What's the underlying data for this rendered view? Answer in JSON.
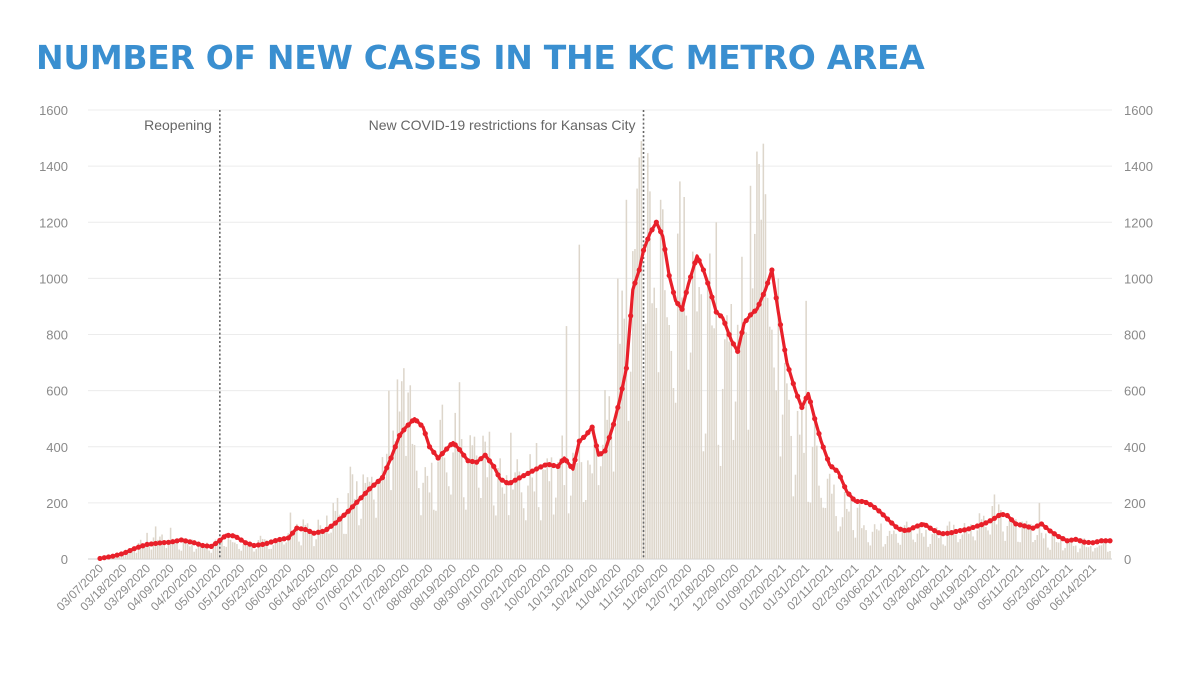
{
  "title": "NUMBER OF NEW CASES IN THE KC METRO AREA",
  "chart_data": {
    "type": "bar",
    "colors": {
      "bars": "#ddd6cb",
      "avg_line": "#e8202a",
      "title": "#3a8fd0"
    },
    "ylim": [
      0,
      1600
    ],
    "yticks": [
      0,
      200,
      400,
      600,
      800,
      1000,
      1200,
      1400,
      1600
    ],
    "secondary_axis": "right (same scale)",
    "x_start": "2020-03-07",
    "x_end": "2021-06-22",
    "xtick_labels": [
      "03/07/2020",
      "03/18/2020",
      "03/29/2020",
      "04/09/2020",
      "04/20/2020",
      "05/01/2020",
      "05/12/2020",
      "05/23/2020",
      "06/03/2020",
      "06/14/2020",
      "06/25/2020",
      "07/06/2020",
      "07/17/2020",
      "07/28/2020",
      "08/08/2020",
      "08/19/2020",
      "08/30/2020",
      "09/10/2020",
      "09/21/2020",
      "10/02/2020",
      "10/13/2020",
      "10/24/2020",
      "11/04/2020",
      "11/15/2020",
      "11/26/2020",
      "12/07/2020",
      "12/18/2020",
      "12/29/2020",
      "01/09/2021",
      "01/20/2021",
      "01/31/2021",
      "02/11/2021",
      "02/23/2021",
      "03/06/2021",
      "03/17/2021",
      "03/28/2021",
      "04/08/2021",
      "04/19/2021",
      "04/30/2021",
      "05/11/2021",
      "05/23/2021",
      "06/03/2021",
      "06/14/2021"
    ],
    "annotations": [
      {
        "date": "2020-05-02",
        "label": "Reopening"
      },
      {
        "date": "2020-11-16",
        "label": "New COVID-19 restrictions for Kansas City"
      }
    ],
    "series": [
      {
        "type": "bar",
        "description": "daily new cases (approximate)",
        "points": [
          [
            "2020-03-07",
            0
          ],
          [
            "2020-03-15",
            10
          ],
          [
            "2020-03-22",
            40
          ],
          [
            "2020-03-29",
            75
          ],
          [
            "2020-04-05",
            85
          ],
          [
            "2020-04-12",
            70
          ],
          [
            "2020-04-20",
            55
          ],
          [
            "2020-04-28",
            50
          ],
          [
            "2020-05-03",
            80
          ],
          [
            "2020-05-10",
            55
          ],
          [
            "2020-05-18",
            55
          ],
          [
            "2020-05-25",
            60
          ],
          [
            "2020-06-01",
            85
          ],
          [
            "2020-06-05",
            125
          ],
          [
            "2020-06-14",
            100
          ],
          [
            "2020-06-20",
            130
          ],
          [
            "2020-06-25",
            175
          ],
          [
            "2020-07-01",
            230
          ],
          [
            "2020-07-06",
            290
          ],
          [
            "2020-07-12",
            330
          ],
          [
            "2020-07-17",
            340
          ],
          [
            "2020-07-22",
            480
          ],
          [
            "2020-07-26",
            560
          ],
          [
            "2020-07-29",
            530
          ],
          [
            "2020-08-03",
            380
          ],
          [
            "2020-08-08",
            320
          ],
          [
            "2020-08-12",
            340
          ],
          [
            "2020-08-16",
            390
          ],
          [
            "2020-08-19",
            380
          ],
          [
            "2020-08-24",
            330
          ],
          [
            "2020-08-30",
            360
          ],
          [
            "2020-09-04",
            380
          ],
          [
            "2020-09-08",
            300
          ],
          [
            "2020-09-12",
            240
          ],
          [
            "2020-09-18",
            280
          ],
          [
            "2020-09-24",
            320
          ],
          [
            "2020-09-30",
            340
          ],
          [
            "2020-10-04",
            320
          ],
          [
            "2020-10-08",
            330
          ],
          [
            "2020-10-12",
            310
          ],
          [
            "2020-10-16",
            420
          ],
          [
            "2020-10-20",
            380
          ],
          [
            "2020-10-24",
            410
          ],
          [
            "2020-10-28",
            520
          ],
          [
            "2020-11-01",
            650
          ],
          [
            "2020-11-05",
            900
          ],
          [
            "2020-11-09",
            1050
          ],
          [
            "2020-11-14",
            1180
          ],
          [
            "2020-11-18",
            1240
          ],
          [
            "2020-11-22",
            1120
          ],
          [
            "2020-11-26",
            950
          ],
          [
            "2020-11-30",
            900
          ],
          [
            "2020-12-03",
            1050
          ],
          [
            "2020-12-07",
            1100
          ],
          [
            "2020-12-10",
            1000
          ],
          [
            "2020-12-14",
            880
          ],
          [
            "2020-12-18",
            820
          ],
          [
            "2020-12-22",
            780
          ],
          [
            "2020-12-26",
            680
          ],
          [
            "2020-12-29",
            850
          ],
          [
            "2021-01-02",
            900
          ],
          [
            "2021-01-06",
            1050
          ],
          [
            "2021-01-09",
            1200
          ],
          [
            "2021-01-13",
            950
          ],
          [
            "2021-01-17",
            700
          ],
          [
            "2021-01-21",
            580
          ],
          [
            "2021-01-25",
            560
          ],
          [
            "2021-01-29",
            520
          ],
          [
            "2021-02-02",
            380
          ],
          [
            "2021-02-06",
            320
          ],
          [
            "2021-02-10",
            240
          ],
          [
            "2021-02-15",
            200
          ],
          [
            "2021-02-20",
            190
          ],
          [
            "2021-02-25",
            160
          ],
          [
            "2021-03-01",
            120
          ],
          [
            "2021-03-06",
            100
          ],
          [
            "2021-03-12",
            110
          ],
          [
            "2021-03-17",
            120
          ],
          [
            "2021-03-23",
            100
          ],
          [
            "2021-03-28",
            90
          ],
          [
            "2021-04-03",
            95
          ],
          [
            "2021-04-08",
            105
          ],
          [
            "2021-04-14",
            115
          ],
          [
            "2021-04-19",
            130
          ],
          [
            "2021-04-24",
            150
          ],
          [
            "2021-04-28",
            170
          ],
          [
            "2021-05-02",
            150
          ],
          [
            "2021-05-07",
            120
          ],
          [
            "2021-05-12",
            115
          ],
          [
            "2021-05-17",
            120
          ],
          [
            "2021-05-23",
            90
          ],
          [
            "2021-05-28",
            70
          ],
          [
            "2021-06-03",
            60
          ],
          [
            "2021-06-09",
            60
          ],
          [
            "2021-06-14",
            55
          ],
          [
            "2021-06-22",
            60
          ]
        ],
        "spikes": [
          [
            "2020-07-20",
            600
          ],
          [
            "2020-07-24",
            640
          ],
          [
            "2020-07-27",
            680
          ],
          [
            "2020-08-14",
            550
          ],
          [
            "2020-08-22",
            630
          ],
          [
            "2020-09-15",
            450
          ],
          [
            "2020-10-09",
            440
          ],
          [
            "2020-10-11",
            830
          ],
          [
            "2020-10-17",
            1120
          ],
          [
            "2020-11-08",
            1280
          ],
          [
            "2020-11-13",
            1320
          ],
          [
            "2020-11-19",
            1310
          ],
          [
            "2020-11-24",
            1280
          ],
          [
            "2020-12-05",
            1290
          ],
          [
            "2020-12-20",
            1200
          ],
          [
            "2021-01-05",
            1330
          ],
          [
            "2021-01-11",
            1480
          ],
          [
            "2021-01-12",
            1300
          ],
          [
            "2021-01-18",
            1000
          ],
          [
            "2021-01-31",
            920
          ],
          [
            "2021-04-29",
            230
          ],
          [
            "2021-05-20",
            200
          ]
        ]
      },
      {
        "type": "line",
        "description": "7-day rolling average (approximate)",
        "points": [
          [
            "2020-03-07",
            2
          ],
          [
            "2020-03-13",
            10
          ],
          [
            "2020-03-18",
            20
          ],
          [
            "2020-03-24",
            40
          ],
          [
            "2020-03-29",
            52
          ],
          [
            "2020-04-05",
            58
          ],
          [
            "2020-04-09",
            60
          ],
          [
            "2020-04-14",
            68
          ],
          [
            "2020-04-20",
            58
          ],
          [
            "2020-04-24",
            48
          ],
          [
            "2020-04-28",
            45
          ],
          [
            "2020-05-01",
            60
          ],
          [
            "2020-05-05",
            85
          ],
          [
            "2020-05-09",
            82
          ],
          [
            "2020-05-14",
            58
          ],
          [
            "2020-05-18",
            48
          ],
          [
            "2020-05-23",
            53
          ],
          [
            "2020-05-29",
            68
          ],
          [
            "2020-06-03",
            75
          ],
          [
            "2020-06-07",
            110
          ],
          [
            "2020-06-11",
            105
          ],
          [
            "2020-06-15",
            92
          ],
          [
            "2020-06-20",
            100
          ],
          [
            "2020-06-25",
            128
          ],
          [
            "2020-07-01",
            170
          ],
          [
            "2020-07-06",
            210
          ],
          [
            "2020-07-11",
            250
          ],
          [
            "2020-07-17",
            290
          ],
          [
            "2020-07-21",
            360
          ],
          [
            "2020-07-25",
            440
          ],
          [
            "2020-07-28",
            470
          ],
          [
            "2020-08-01",
            500
          ],
          [
            "2020-08-05",
            470
          ],
          [
            "2020-08-08",
            400
          ],
          [
            "2020-08-12",
            360
          ],
          [
            "2020-08-17",
            400
          ],
          [
            "2020-08-19",
            415
          ],
          [
            "2020-08-22",
            390
          ],
          [
            "2020-08-26",
            350
          ],
          [
            "2020-08-30",
            345
          ],
          [
            "2020-09-03",
            370
          ],
          [
            "2020-09-07",
            330
          ],
          [
            "2020-09-10",
            285
          ],
          [
            "2020-09-14",
            268
          ],
          [
            "2020-09-18",
            285
          ],
          [
            "2020-09-23",
            305
          ],
          [
            "2020-09-28",
            325
          ],
          [
            "2020-10-02",
            338
          ],
          [
            "2020-10-07",
            330
          ],
          [
            "2020-10-10",
            360
          ],
          [
            "2020-10-14",
            320
          ],
          [
            "2020-10-17",
            420
          ],
          [
            "2020-10-20",
            440
          ],
          [
            "2020-10-23",
            470
          ],
          [
            "2020-10-26",
            370
          ],
          [
            "2020-10-29",
            385
          ],
          [
            "2020-11-02",
            480
          ],
          [
            "2020-11-05",
            570
          ],
          [
            "2020-11-08",
            680
          ],
          [
            "2020-11-11",
            960
          ],
          [
            "2020-11-14",
            1030
          ],
          [
            "2020-11-16",
            1100
          ],
          [
            "2020-11-19",
            1160
          ],
          [
            "2020-11-22",
            1200
          ],
          [
            "2020-11-25",
            1150
          ],
          [
            "2020-11-28",
            1010
          ],
          [
            "2020-12-01",
            920
          ],
          [
            "2020-12-04",
            890
          ],
          [
            "2020-12-07",
            980
          ],
          [
            "2020-12-11",
            1080
          ],
          [
            "2020-12-14",
            1030
          ],
          [
            "2020-12-17",
            960
          ],
          [
            "2020-12-20",
            880
          ],
          [
            "2020-12-23",
            860
          ],
          [
            "2020-12-27",
            780
          ],
          [
            "2020-12-30",
            740
          ],
          [
            "2021-01-02",
            840
          ],
          [
            "2021-01-05",
            870
          ],
          [
            "2021-01-08",
            890
          ],
          [
            "2021-01-12",
            960
          ],
          [
            "2021-01-15",
            1030
          ],
          [
            "2021-01-18",
            880
          ],
          [
            "2021-01-22",
            700
          ],
          [
            "2021-01-26",
            600
          ],
          [
            "2021-01-29",
            540
          ],
          [
            "2021-02-01",
            590
          ],
          [
            "2021-02-04",
            500
          ],
          [
            "2021-02-07",
            420
          ],
          [
            "2021-02-11",
            335
          ],
          [
            "2021-02-15",
            310
          ],
          [
            "2021-02-19",
            240
          ],
          [
            "2021-02-23",
            205
          ],
          [
            "2021-02-27",
            205
          ],
          [
            "2021-03-03",
            190
          ],
          [
            "2021-03-07",
            165
          ],
          [
            "2021-03-11",
            135
          ],
          [
            "2021-03-15",
            108
          ],
          [
            "2021-03-19",
            100
          ],
          [
            "2021-03-23",
            115
          ],
          [
            "2021-03-27",
            125
          ],
          [
            "2021-03-31",
            105
          ],
          [
            "2021-04-04",
            90
          ],
          [
            "2021-04-08",
            92
          ],
          [
            "2021-04-12",
            100
          ],
          [
            "2021-04-16",
            105
          ],
          [
            "2021-04-20",
            115
          ],
          [
            "2021-04-24",
            125
          ],
          [
            "2021-04-28",
            140
          ],
          [
            "2021-05-02",
            160
          ],
          [
            "2021-05-05",
            155
          ],
          [
            "2021-05-09",
            125
          ],
          [
            "2021-05-13",
            118
          ],
          [
            "2021-05-17",
            110
          ],
          [
            "2021-05-21",
            125
          ],
          [
            "2021-05-25",
            100
          ],
          [
            "2021-05-29",
            80
          ],
          [
            "2021-06-02",
            65
          ],
          [
            "2021-06-06",
            70
          ],
          [
            "2021-06-10",
            60
          ],
          [
            "2021-06-14",
            58
          ],
          [
            "2021-06-18",
            65
          ],
          [
            "2021-06-22",
            65
          ]
        ]
      }
    ]
  }
}
